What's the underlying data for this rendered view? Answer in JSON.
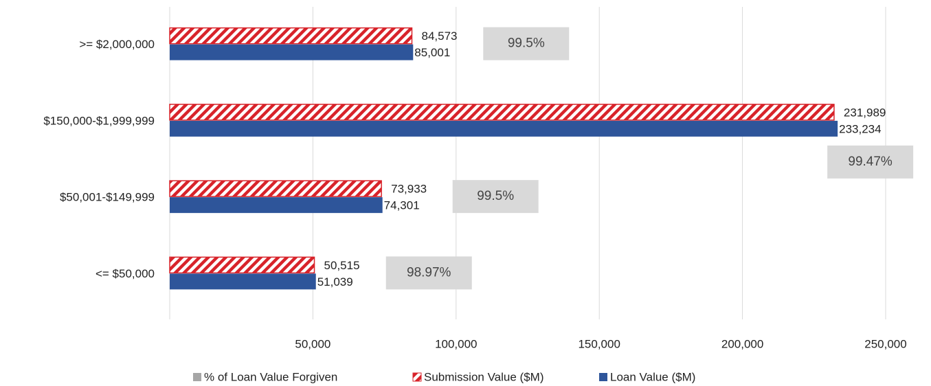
{
  "chart_data": {
    "type": "hbar",
    "categories": [
      ">= $2,000,000",
      "$150,000-$1,999,999",
      "$50,001-$149,999",
      "<= $50,000"
    ],
    "series": [
      {
        "name": "% of Loan Value Forgiven",
        "color": "#a6a6a6",
        "values": [
          99.5,
          99.47,
          99.5,
          98.97
        ],
        "value_labels": [
          "99.5%",
          "99.47%",
          "99.5%",
          "98.97%"
        ]
      },
      {
        "name": "Submission Value ($M)",
        "color": "#d8232a",
        "values": [
          84573,
          231989,
          73933,
          50515
        ],
        "value_labels": [
          "84,573",
          "231,989",
          "73,933",
          "50,515"
        ]
      },
      {
        "name": "Loan Value ($M)",
        "color": "#2e559a",
        "values": [
          85001,
          233234,
          74301,
          51039
        ],
        "value_labels": [
          "85,001",
          "233,234",
          "74,301",
          "51,039"
        ]
      }
    ],
    "xlim": [
      0,
      250000
    ],
    "xticks": [
      {
        "value": 50000,
        "label": "50,000"
      },
      {
        "value": 100000,
        "label": "100,000"
      },
      {
        "value": 150000,
        "label": "150,000"
      },
      {
        "value": 200000,
        "label": "200,000"
      },
      {
        "value": 250000,
        "label": "250,000"
      }
    ],
    "grid": true
  }
}
